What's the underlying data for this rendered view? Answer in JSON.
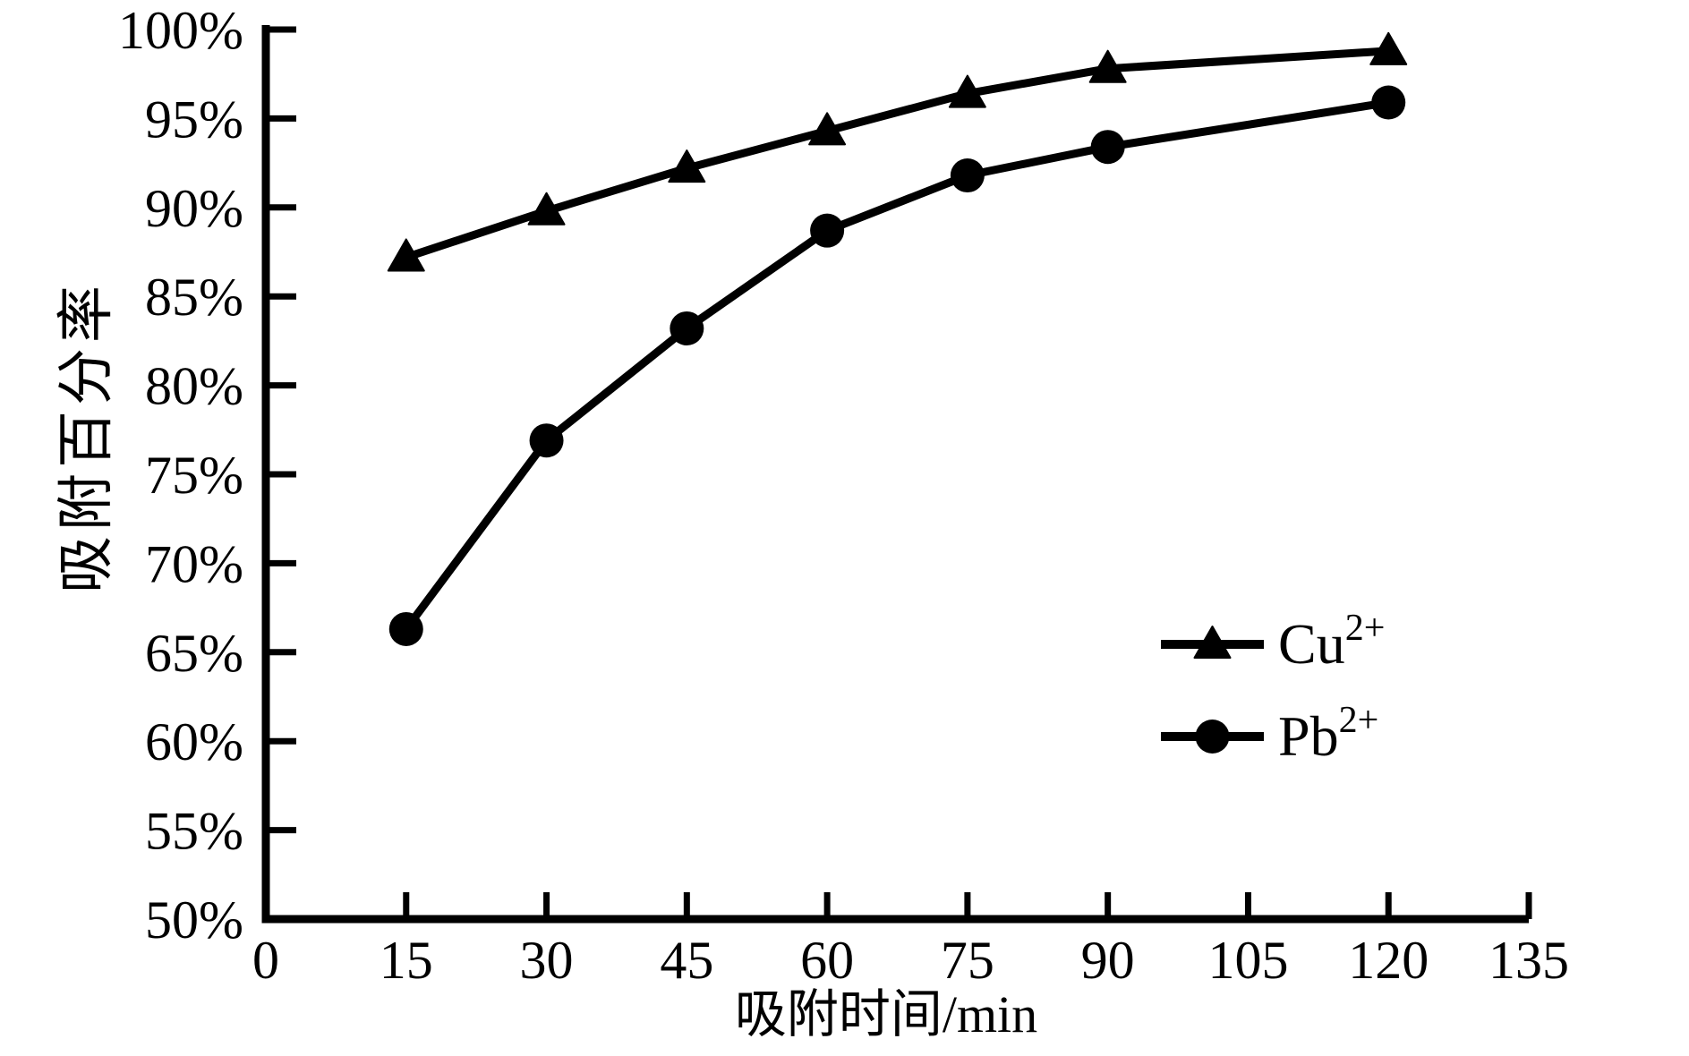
{
  "chart_data": {
    "type": "line",
    "title": "",
    "xlabel": "吸附时间/min",
    "ylabel": "吸附百分率",
    "xlim": [
      0,
      135
    ],
    "ylim": [
      50,
      100
    ],
    "x_ticks": [
      0,
      15,
      30,
      45,
      60,
      75,
      90,
      105,
      120,
      135
    ],
    "y_ticks": [
      50,
      55,
      60,
      65,
      70,
      75,
      80,
      85,
      90,
      95,
      100
    ],
    "y_tick_suffix": "%",
    "grid": false,
    "legend_position": "inside-right-middle",
    "x": [
      15,
      30,
      45,
      60,
      75,
      90,
      120
    ],
    "series": [
      {
        "name": "Cu2+",
        "legend_base": "Cu",
        "legend_sup": "2+",
        "marker": "triangle",
        "values": [
          87.2,
          89.8,
          92.2,
          94.3,
          96.4,
          97.8,
          98.8
        ]
      },
      {
        "name": "Pb2+",
        "legend_base": "Pb",
        "legend_sup": "2+",
        "marker": "circle",
        "values": [
          66.3,
          76.9,
          83.2,
          88.7,
          91.8,
          93.4,
          95.9
        ]
      }
    ],
    "colors": {
      "foreground": "#000000",
      "background": "#ffffff"
    }
  }
}
